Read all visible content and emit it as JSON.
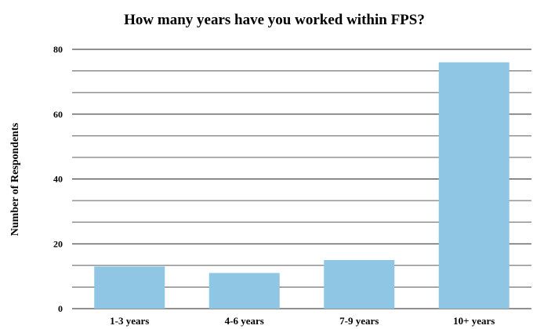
{
  "chart_data": {
    "type": "bar",
    "title": "How many years have you worked within FPS?",
    "xlabel": "",
    "ylabel": "Number of Respondents",
    "categories": [
      "1-3 years",
      "4-6 years",
      "7-9 years",
      "10+ years"
    ],
    "values": [
      13,
      11,
      15,
      76
    ],
    "ylim": [
      0,
      80
    ],
    "yticks": [
      0,
      20,
      40,
      60,
      80
    ],
    "grid": true,
    "bar_color": "#8ec6e3"
  }
}
